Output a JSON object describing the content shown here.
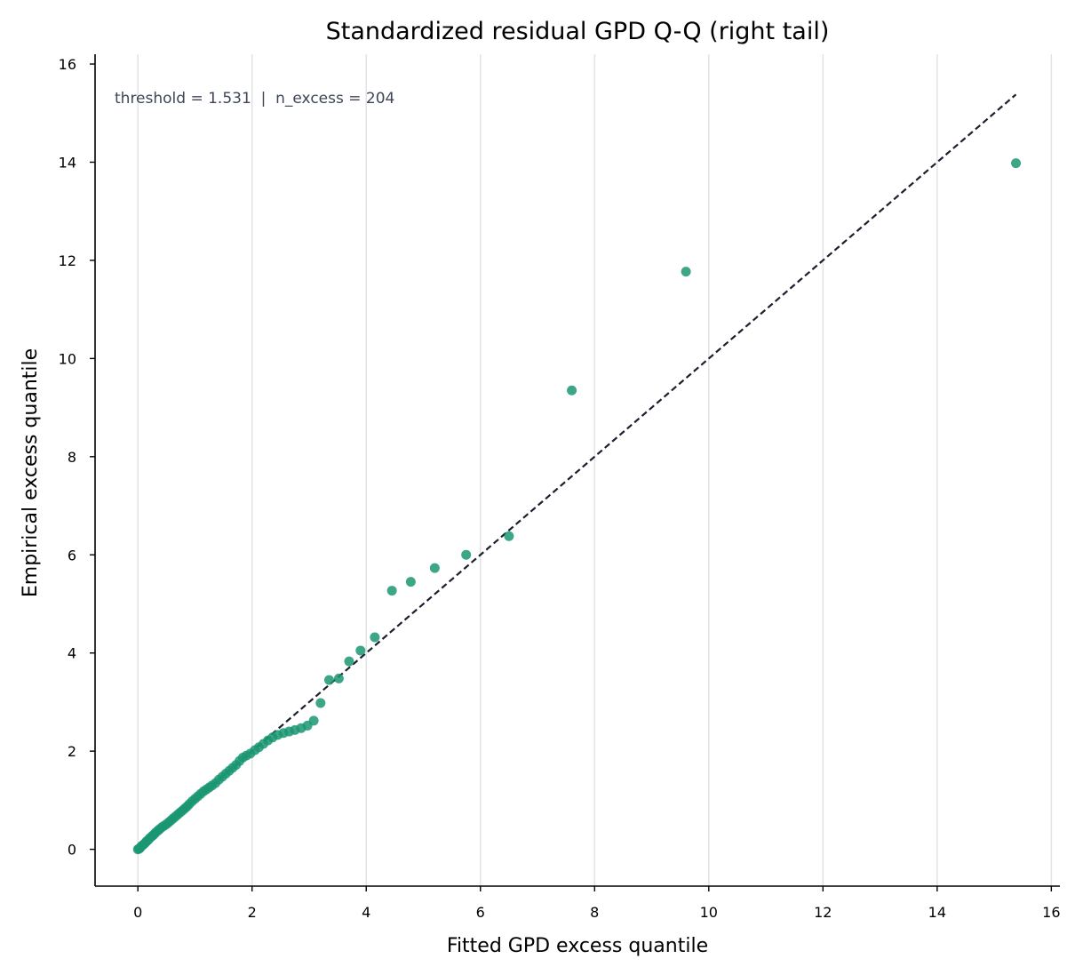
{
  "chart_data": {
    "type": "scatter",
    "title": "Standardized residual GPD Q-Q (right tail)",
    "xlabel": "Fitted GPD excess quantile",
    "ylabel": "Empirical excess quantile",
    "annotation": "threshold = 1.531  |  n_excess = 204",
    "xlim": [
      -0.75,
      16.15
    ],
    "ylim": [
      -0.75,
      16.2
    ],
    "xticks": [
      0,
      2,
      4,
      6,
      8,
      10,
      12,
      14,
      16
    ],
    "yticks": [
      0,
      2,
      4,
      6,
      8,
      10,
      12,
      14,
      16
    ],
    "grid": "vertical",
    "colors": {
      "points": "#1a9772",
      "reference_line": "#1b1f2e",
      "grid": "#e3e3e3",
      "annotation": "#3d4757"
    },
    "reference_line": {
      "x": [
        0,
        15.38
      ],
      "y": [
        0,
        15.38
      ]
    },
    "series": [
      {
        "x": [
          0.0,
          0.02,
          0.04,
          0.06,
          0.09,
          0.12,
          0.15,
          0.18,
          0.21,
          0.25,
          0.28,
          0.31,
          0.35,
          0.38,
          0.42,
          0.46,
          0.5,
          0.54,
          0.58,
          0.62,
          0.66,
          0.7,
          0.74,
          0.78,
          0.82,
          0.86,
          0.9,
          0.95,
          1.0,
          1.05,
          1.1,
          1.15,
          1.2,
          1.25,
          1.3,
          1.36,
          1.42,
          1.48,
          1.54,
          1.6,
          1.66,
          1.72,
          1.78,
          1.84,
          1.9,
          1.97,
          2.05,
          2.12,
          2.2,
          2.28,
          2.36,
          2.45,
          2.55,
          2.65,
          2.75,
          2.86,
          2.97,
          3.08,
          3.2,
          3.35,
          3.52,
          3.7,
          3.9,
          4.15,
          4.45,
          4.78,
          5.2,
          5.75,
          6.5,
          7.6,
          9.6,
          15.38
        ],
        "y": [
          0.0,
          0.01,
          0.03,
          0.06,
          0.09,
          0.12,
          0.16,
          0.19,
          0.23,
          0.27,
          0.3,
          0.34,
          0.38,
          0.41,
          0.45,
          0.48,
          0.51,
          0.55,
          0.59,
          0.63,
          0.67,
          0.71,
          0.75,
          0.79,
          0.83,
          0.87,
          0.92,
          0.98,
          1.03,
          1.08,
          1.13,
          1.18,
          1.22,
          1.26,
          1.3,
          1.35,
          1.42,
          1.48,
          1.54,
          1.6,
          1.66,
          1.72,
          1.8,
          1.87,
          1.91,
          1.95,
          2.02,
          2.08,
          2.15,
          2.22,
          2.28,
          2.33,
          2.37,
          2.4,
          2.43,
          2.47,
          2.52,
          2.62,
          2.98,
          3.45,
          3.48,
          3.83,
          4.05,
          4.32,
          5.27,
          5.45,
          5.73,
          6.0,
          6.38,
          9.35,
          11.77,
          13.98
        ]
      }
    ]
  }
}
